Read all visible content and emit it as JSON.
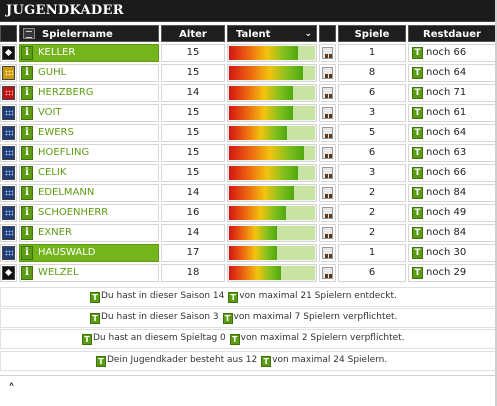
{
  "title": "JUGENDKADER",
  "headers": {
    "name": "Spielername",
    "age": "Alter",
    "talent": "Talent",
    "talent_arrow": "⌄",
    "games": "Spiele",
    "rest": "Restdauer"
  },
  "players": [
    {
      "status": "diamond",
      "name": "KELLER",
      "age": "15",
      "talent": 0.8,
      "games": "1",
      "rest": "noch 66",
      "highlight": true
    },
    {
      "status": "yellow",
      "name": "GUHL",
      "age": "15",
      "talent": 0.86,
      "games": "8",
      "rest": "noch 64",
      "highlight": false
    },
    {
      "status": "red",
      "name": "HERZBERG",
      "age": "14",
      "talent": 0.74,
      "games": "6",
      "rest": "noch 71",
      "highlight": false
    },
    {
      "status": "blue",
      "name": "VOIT",
      "age": "15",
      "talent": 0.74,
      "games": "3",
      "rest": "noch 61",
      "highlight": false
    },
    {
      "status": "blue",
      "name": "EWERS",
      "age": "15",
      "talent": 0.68,
      "games": "5",
      "rest": "noch 64",
      "highlight": false
    },
    {
      "status": "blue",
      "name": "HOEFLING",
      "age": "15",
      "talent": 0.87,
      "games": "6",
      "rest": "noch 63",
      "highlight": false
    },
    {
      "status": "blue",
      "name": "CELIK",
      "age": "15",
      "talent": 0.8,
      "games": "3",
      "rest": "noch 66",
      "highlight": false
    },
    {
      "status": "blue",
      "name": "EDELMANN",
      "age": "14",
      "talent": 0.76,
      "games": "2",
      "rest": "noch 84",
      "highlight": false
    },
    {
      "status": "blue",
      "name": "SCHOENHERR",
      "age": "16",
      "talent": 0.66,
      "games": "2",
      "rest": "noch 49",
      "highlight": false
    },
    {
      "status": "blue",
      "name": "EXNER",
      "age": "14",
      "talent": 0.56,
      "games": "2",
      "rest": "noch 84",
      "highlight": false
    },
    {
      "status": "blue",
      "name": "HAUSWALD",
      "age": "17",
      "talent": 0.56,
      "games": "1",
      "rest": "noch 30",
      "highlight": true
    },
    {
      "status": "diamond",
      "name": "WELZEL",
      "age": "18",
      "talent": 0.6,
      "games": "6",
      "rest": "noch 29",
      "highlight": false
    }
  ],
  "info": {
    "line1": {
      "a": "Du hast in dieser Saison 14",
      "b": "von maximal 21 Spielern entdeckt."
    },
    "line2": {
      "a": "Du hast in dieser Saison 3",
      "b": "von maximal 7 Spielern verpflichtet."
    },
    "line3": {
      "a": "Du hast an diesem Spieltag 0",
      "b": "von maximal 2 Spielern verpflichtet."
    },
    "line4": {
      "a": "Dein Jugendkader besteht aus 12",
      "b": "von maximal 24 Spielern."
    }
  },
  "icons": {
    "info_glyph": "i",
    "trikot_glyph": "T",
    "caret_glyph": "˄"
  },
  "colors": {
    "accent_green": "#5b9c12",
    "highlight_green": "#74b51c",
    "header_dark": "#1e1e1e"
  }
}
